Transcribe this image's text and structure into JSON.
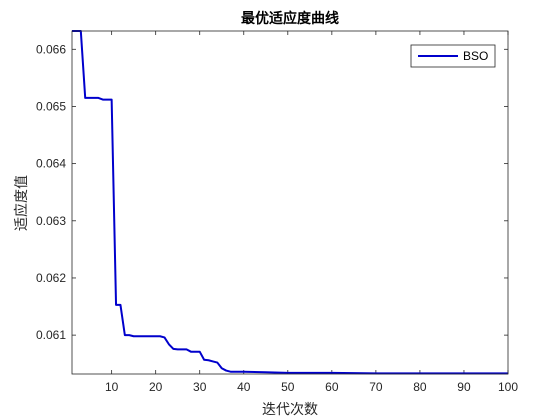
{
  "chart_data": {
    "type": "line",
    "title": "最优适应度曲线",
    "xlabel": "迭代次数",
    "ylabel": "适应度值",
    "xlim": [
      1,
      100
    ],
    "ylim": [
      0.06032,
      0.06632
    ],
    "xticks": [
      10,
      20,
      30,
      40,
      50,
      60,
      70,
      80,
      90,
      100
    ],
    "yticks": [
      0.061,
      0.062,
      0.063,
      0.064,
      0.065,
      0.066
    ],
    "ytick_labels": [
      "0.061",
      "0.062",
      "0.063",
      "0.064",
      "0.065",
      "0.066"
    ],
    "grid": false,
    "legend_position": "top-right",
    "series": [
      {
        "name": "BSO",
        "color": "#0000cc",
        "x": [
          1,
          2,
          3,
          4,
          5,
          6,
          7,
          8,
          9,
          10,
          11,
          12,
          13,
          14,
          15,
          16,
          17,
          18,
          19,
          20,
          21,
          22,
          23,
          24,
          25,
          26,
          27,
          28,
          29,
          30,
          31,
          32,
          33,
          34,
          35,
          36,
          37,
          38,
          39,
          40,
          45,
          50,
          55,
          60,
          70,
          80,
          90,
          100
        ],
        "y": [
          0.06632,
          0.06632,
          0.06632,
          0.06515,
          0.06515,
          0.06515,
          0.06515,
          0.06512,
          0.06512,
          0.06512,
          0.06153,
          0.06153,
          0.061,
          0.061,
          0.06098,
          0.06098,
          0.06098,
          0.06098,
          0.06098,
          0.06098,
          0.06098,
          0.06096,
          0.06084,
          0.06076,
          0.06075,
          0.06075,
          0.06075,
          0.06071,
          0.06071,
          0.06071,
          0.06057,
          0.06056,
          0.06054,
          0.06052,
          0.06042,
          0.06038,
          0.06036,
          0.06036,
          0.06036,
          0.06036,
          0.06035,
          0.06034,
          0.06034,
          0.06034,
          0.06033,
          0.06033,
          0.06033,
          0.06033
        ]
      }
    ]
  }
}
